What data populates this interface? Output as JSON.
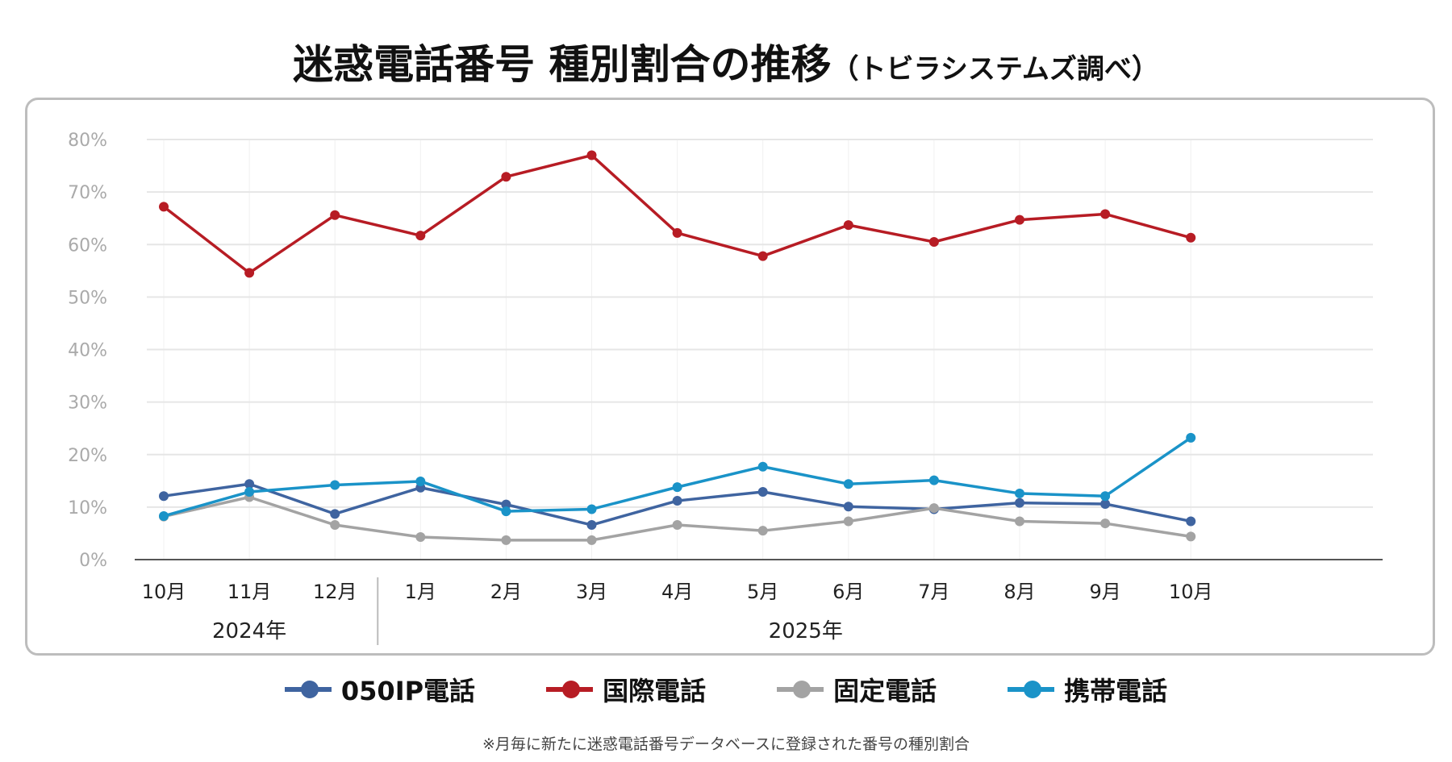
{
  "title": {
    "main": "迷惑電話番号 種別割合の推移",
    "sub": "（トビラシステムズ調べ）"
  },
  "footnote": "※月毎に新たに迷惑電話番号データベースに登録された番号の種別割合",
  "chart_data": {
    "type": "line",
    "title": "迷惑電話番号 種別割合の推移",
    "categories": [
      "10月",
      "11月",
      "12月",
      "1月",
      "2月",
      "3月",
      "4月",
      "5月",
      "6月",
      "7月",
      "8月",
      "9月",
      "10月"
    ],
    "year_groups": [
      {
        "label": "2024年",
        "span": 3
      },
      {
        "label": "2025年",
        "span": 10
      }
    ],
    "y_ticks": [
      "0%",
      "10%",
      "20%",
      "30%",
      "40%",
      "50%",
      "60%",
      "70%",
      "80%"
    ],
    "ylim": [
      0,
      80
    ],
    "y_unit": "%",
    "grid": true,
    "legend_position": "bottom",
    "series": [
      {
        "name": "050IP電話",
        "color": "#3f64a0",
        "values": [
          12.1,
          14.4,
          8.7,
          13.7,
          10.5,
          6.6,
          11.2,
          12.9,
          10.1,
          9.6,
          10.8,
          10.6,
          7.3
        ]
      },
      {
        "name": "国際電話",
        "color": "#b71c24",
        "values": [
          67.2,
          54.6,
          65.6,
          61.7,
          72.9,
          77.0,
          62.2,
          57.8,
          63.7,
          60.5,
          64.7,
          65.8,
          61.3
        ]
      },
      {
        "name": "固定電話",
        "color": "#a3a3a3",
        "values": [
          8.2,
          11.9,
          6.6,
          4.3,
          3.7,
          3.7,
          6.6,
          5.5,
          7.3,
          9.8,
          7.3,
          6.9,
          4.4
        ]
      },
      {
        "name": "携帯電話",
        "color": "#1a93c8",
        "values": [
          8.3,
          12.9,
          14.2,
          14.9,
          9.2,
          9.6,
          13.8,
          17.7,
          14.4,
          15.1,
          12.6,
          12.1,
          23.2
        ]
      }
    ]
  }
}
